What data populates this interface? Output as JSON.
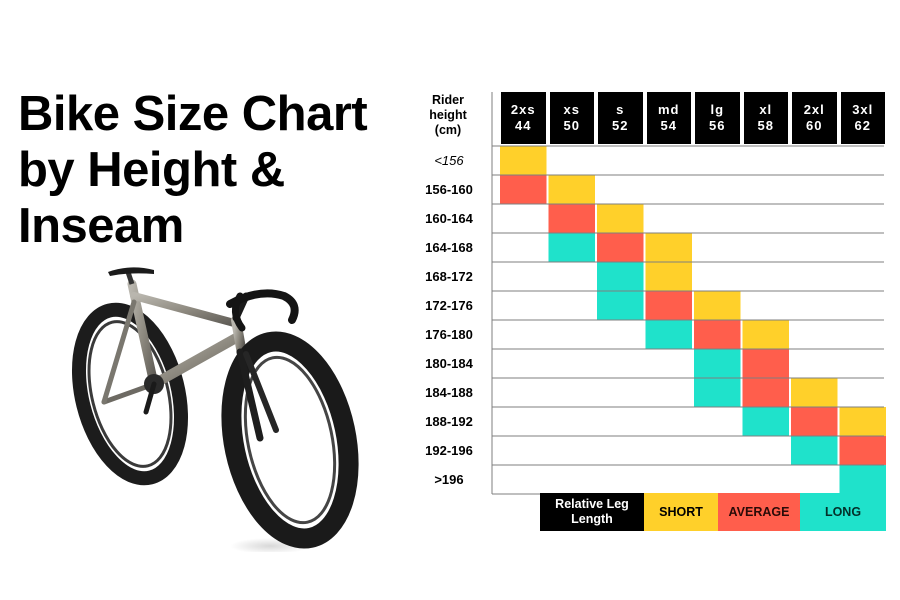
{
  "title": {
    "line1": "Bike Size Chart",
    "line2": "by Height &",
    "line3": "Inseam"
  },
  "rider_header": {
    "line1": "Rider",
    "line2": "height",
    "line3": "(cm)"
  },
  "colors": {
    "short": "#FFD02A",
    "average": "#FF5E4C",
    "long": "#1FE2CB",
    "header": "#000000",
    "line": "#7f7f7f"
  },
  "chart_data": {
    "type": "table",
    "sizes": [
      {
        "name": "2xs",
        "frame": "44"
      },
      {
        "name": "xs",
        "frame": "50"
      },
      {
        "name": "s",
        "frame": "52"
      },
      {
        "name": "md",
        "frame": "54"
      },
      {
        "name": "lg",
        "frame": "56"
      },
      {
        "name": "xl",
        "frame": "58"
      },
      {
        "name": "2xl",
        "frame": "60"
      },
      {
        "name": "3xl",
        "frame": "62"
      }
    ],
    "rows": [
      {
        "height": "<156",
        "cells": {
          "0": "short"
        }
      },
      {
        "height": "156-160",
        "cells": {
          "0": "average",
          "1": "short"
        }
      },
      {
        "height": "160-164",
        "cells": {
          "1": "average",
          "2": "short"
        }
      },
      {
        "height": "164-168",
        "cells": {
          "1": "long",
          "2": "average",
          "3": "short"
        }
      },
      {
        "height": "168-172",
        "cells": {
          "2": "long",
          "3": "short"
        }
      },
      {
        "height": "172-176",
        "cells": {
          "2": "long",
          "3": "average",
          "4": "short"
        }
      },
      {
        "height": "176-180",
        "cells": {
          "3": "long",
          "4": "average",
          "5": "short"
        }
      },
      {
        "height": "180-184",
        "cells": {
          "4": "long",
          "5": "average"
        }
      },
      {
        "height": "184-188",
        "cells": {
          "4": "long",
          "5": "average",
          "6": "short"
        }
      },
      {
        "height": "188-192",
        "cells": {
          "5": "long",
          "6": "average",
          "7": "short"
        }
      },
      {
        "height": "192-196",
        "cells": {
          "6": "long",
          "7": "average"
        }
      },
      {
        "height": ">196",
        "cells": {
          "7": "long"
        }
      }
    ],
    "legend": {
      "title": "Relative Leg Length",
      "items": [
        {
          "key": "short",
          "label": "SHORT"
        },
        {
          "key": "average",
          "label": "AVERAGE"
        },
        {
          "key": "long",
          "label": "LONG"
        }
      ]
    }
  }
}
